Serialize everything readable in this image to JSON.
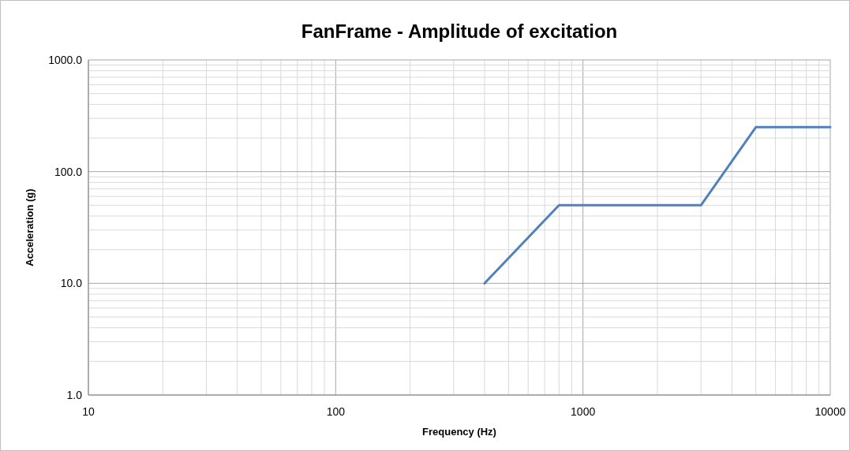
{
  "chart_data": {
    "type": "line",
    "title": "FanFrame - Amplitude of excitation",
    "xlabel": "Frequency (Hz)",
    "ylabel": "Acceleration (g)",
    "x": [
      400,
      800,
      3000,
      5000,
      10000
    ],
    "series": [
      {
        "color": "#4f81bd",
        "values": [
          10,
          50,
          50,
          250,
          250
        ]
      }
    ],
    "log": "xy",
    "xlim": [
      10,
      10000
    ],
    "ylim": [
      1,
      1000
    ],
    "xticks": [
      10,
      {
        "value": 20,
        "label": null
      },
      {
        "value": 30,
        "label": null
      },
      {
        "value": 40,
        "label": null
      },
      {
        "value": 50,
        "label": null
      },
      {
        "value": 60,
        "label": null
      },
      {
        "value": 70,
        "label": null
      },
      {
        "value": 80,
        "label": null
      },
      {
        "value": 90,
        "label": null
      },
      100,
      {
        "value": 200,
        "label": null
      },
      {
        "value": 300,
        "label": null
      },
      {
        "value": 400,
        "label": null
      },
      {
        "value": 500,
        "label": null
      },
      {
        "value": 600,
        "label": null
      },
      {
        "value": 700,
        "label": null
      },
      {
        "value": 800,
        "label": null
      },
      {
        "value": 900,
        "label": null
      },
      1000,
      {
        "value": 2000,
        "label": null
      },
      {
        "value": 3000,
        "label": null
      },
      {
        "value": 4000,
        "label": null
      },
      {
        "value": 5000,
        "label": null
      },
      {
        "value": 6000,
        "label": null
      },
      {
        "value": 7000,
        "label": null
      },
      {
        "value": 8000,
        "label": null
      },
      {
        "value": 9000,
        "label": null
      },
      10000
    ],
    "yticks": [
      {
        "value": 1,
        "label": "1.0"
      },
      {
        "value": 2,
        "label": null
      },
      {
        "value": 3,
        "label": null
      },
      {
        "value": 4,
        "label": null
      },
      {
        "value": 5,
        "label": null
      },
      {
        "value": 6,
        "label": null
      },
      {
        "value": 7,
        "label": null
      },
      {
        "value": 8,
        "label": null
      },
      {
        "value": 9,
        "label": null
      },
      {
        "value": 10,
        "label": "10.0"
      },
      {
        "value": 20,
        "label": null
      },
      {
        "value": 30,
        "label": null
      },
      {
        "value": 40,
        "label": null
      },
      {
        "value": 50,
        "label": null
      },
      {
        "value": 60,
        "label": null
      },
      {
        "value": 70,
        "label": null
      },
      {
        "value": 80,
        "label": null
      },
      {
        "value": 90,
        "label": null
      },
      {
        "value": 100,
        "label": "100.0"
      },
      {
        "value": 200,
        "label": null
      },
      {
        "value": 300,
        "label": null
      },
      {
        "value": 400,
        "label": null
      },
      {
        "value": 500,
        "label": null
      },
      {
        "value": 600,
        "label": null
      },
      {
        "value": 700,
        "label": null
      },
      {
        "value": 800,
        "label": null
      },
      {
        "value": 900,
        "label": null
      },
      {
        "value": 1000,
        "label": "1000.0"
      }
    ],
    "grid": true,
    "marker": "none",
    "line_style": "solid"
  }
}
